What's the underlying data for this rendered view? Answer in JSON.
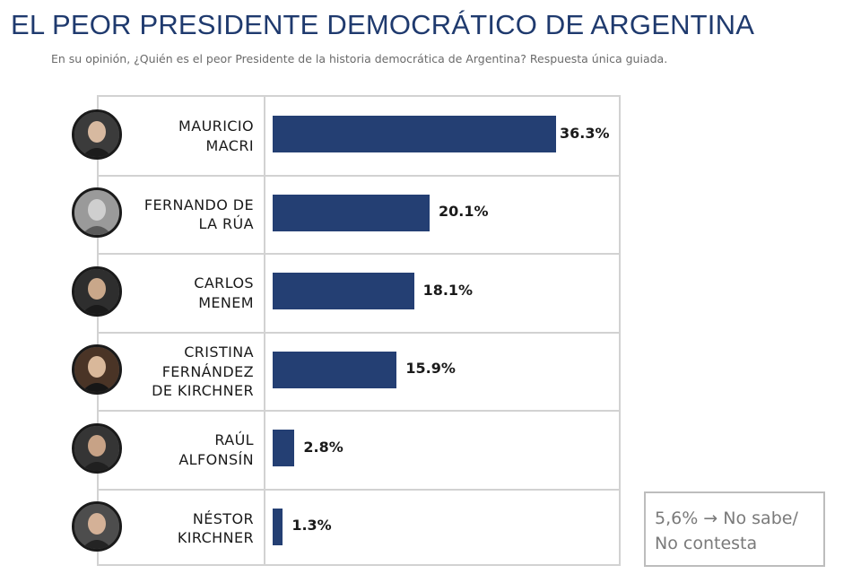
{
  "header": {
    "title": "EL PEOR PRESIDENTE DEMOCRÁTICO DE ARGENTINA",
    "subtitle": "En su opinión, ¿Quién es el peor Presidente de la historia democrática de Argentina? Respuesta única guiada."
  },
  "chart_data": {
    "type": "bar",
    "orientation": "horizontal",
    "title": "EL PEOR PRESIDENTE DEMOCRÁTICO DE ARGENTINA",
    "categories": [
      "MAURICIO MACRI",
      "FERNANDO DE LA RÚA",
      "CARLOS MENEM",
      "CRISTINA FERNÁNDEZ DE KIRCHNER",
      "RAÚL ALFONSÍN",
      "NÉSTOR KIRCHNER"
    ],
    "values": [
      36.3,
      20.1,
      18.1,
      15.9,
      2.8,
      1.3
    ],
    "value_labels": [
      "36.3%",
      "20.1%",
      "18.1%",
      "15.9%",
      "2.8%",
      "1.3%"
    ],
    "name_lines": [
      [
        "MAURICIO",
        "MACRI"
      ],
      [
        "FERNANDO DE",
        "LA RÚA"
      ],
      [
        "CARLOS",
        "MENEM"
      ],
      [
        "CRISTINA",
        "FERNÁNDEZ",
        "DE KIRCHNER"
      ],
      [
        "RAÚL",
        "ALFONSÍN"
      ],
      [
        "NÉSTOR",
        "KIRCHNER"
      ]
    ],
    "bar_color": "#243f73",
    "grid": false
  },
  "note": {
    "line1": "5,6% → No sabe/",
    "line2": "No contesta"
  },
  "colors": {
    "title": "#1f3a6e",
    "bar": "#243f73",
    "border": "#d2d2d2"
  },
  "icons": [
    "avatar-macri",
    "avatar-de-la-rua",
    "avatar-menem",
    "avatar-cfk",
    "avatar-alfonsin",
    "avatar-nestor-kirchner"
  ]
}
